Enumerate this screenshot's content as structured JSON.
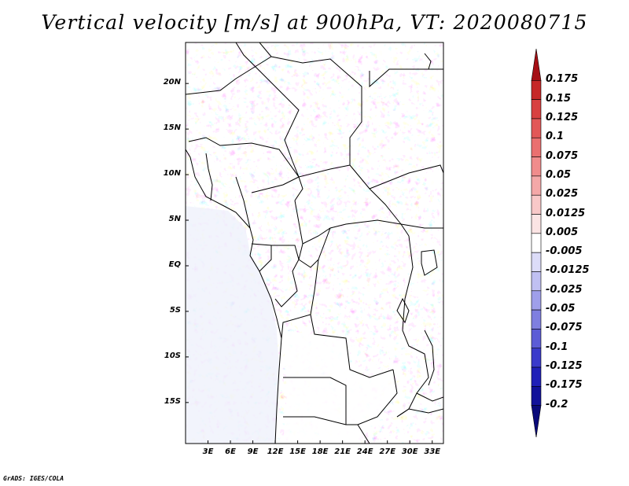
{
  "title": "Vertical velocity [m/s] at 900hPa, VT: 2020080715",
  "footer": "GrADS: IGES/COLA",
  "map": {
    "projection": "latlon",
    "lon_range": [
      0,
      34.5
    ],
    "lat_range": [
      -19.5,
      24.5
    ],
    "y_ticks": [
      {
        "label": "20N",
        "value": 20
      },
      {
        "label": "15N",
        "value": 15
      },
      {
        "label": "10N",
        "value": 10
      },
      {
        "label": "5N",
        "value": 5
      },
      {
        "label": "EQ",
        "value": 0
      },
      {
        "label": "5S",
        "value": -5
      },
      {
        "label": "10S",
        "value": -10
      },
      {
        "label": "15S",
        "value": -15
      }
    ],
    "x_ticks": [
      {
        "label": "3E",
        "value": 3
      },
      {
        "label": "6E",
        "value": 6
      },
      {
        "label": "9E",
        "value": 9
      },
      {
        "label": "12E",
        "value": 12
      },
      {
        "label": "15E",
        "value": 15
      },
      {
        "label": "18E",
        "value": 18
      },
      {
        "label": "21E",
        "value": 21
      },
      {
        "label": "24E",
        "value": 24
      },
      {
        "label": "27E",
        "value": 27
      },
      {
        "label": "30E",
        "value": 30
      },
      {
        "label": "33E",
        "value": 33
      }
    ]
  },
  "colorbar": {
    "labels": [
      "0.175",
      "0.15",
      "0.125",
      "0.1",
      "0.075",
      "0.05",
      "0.025",
      "0.0125",
      "0.005",
      "-0.005",
      "-0.0125",
      "-0.025",
      "-0.05",
      "-0.075",
      "-0.1",
      "-0.125",
      "-0.175",
      "-0.2"
    ],
    "colors": [
      "#a50f15",
      "#c62828",
      "#d84040",
      "#e25858",
      "#ea7070",
      "#f08c8c",
      "#f4a8a8",
      "#f8c8c8",
      "#fbe4e4",
      "#ffffff",
      "#dcdcf8",
      "#c0c0f2",
      "#9f9fea",
      "#7f7fe0",
      "#5c5cd6",
      "#3a3acb",
      "#2020b8",
      "#12129a",
      "#0a0a7a"
    ]
  }
}
